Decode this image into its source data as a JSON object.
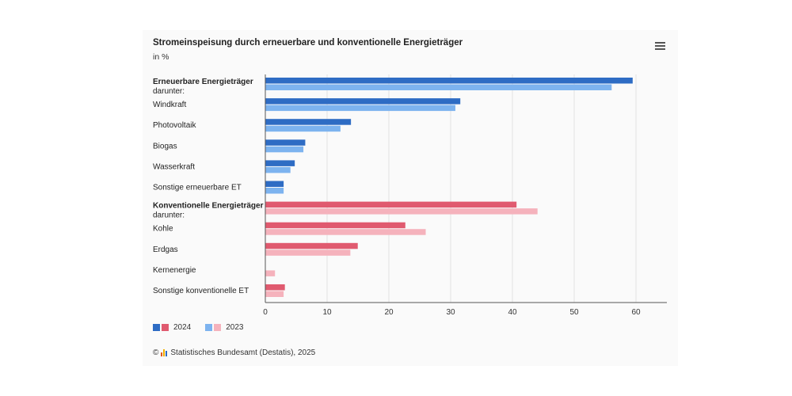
{
  "header": {
    "title": "Stromeinspeisung durch erneuerbare und konventionelle Energieträger",
    "unit": "in %"
  },
  "menu_icon": "hamburger-menu-icon",
  "legend": {
    "items": [
      {
        "label": "2024",
        "colors": [
          "#2e6cc4",
          "#e05a6f"
        ]
      },
      {
        "label": "2023",
        "colors": [
          "#7db3ef",
          "#f5b2bc"
        ]
      }
    ]
  },
  "source": {
    "copyright": "©",
    "logo_icon": "destatis-logo-icon",
    "text": "Statistisches Bundesamt (Destatis), 2025"
  },
  "chart_data": {
    "type": "bar",
    "orientation": "horizontal",
    "title": "Stromeinspeisung durch erneuerbare und konventionelle Energieträger",
    "subtitle": "in %",
    "categories": [
      {
        "label": "Erneuerbare Energieträger",
        "sublabel": "darunter:",
        "bold": true,
        "group": "renewable"
      },
      {
        "label": "Windkraft",
        "group": "renewable"
      },
      {
        "label": "Photovoltaik",
        "group": "renewable"
      },
      {
        "label": "Biogas",
        "group": "renewable"
      },
      {
        "label": "Wasserkraft",
        "group": "renewable"
      },
      {
        "label": "Sonstige erneuerbare ET",
        "group": "renewable"
      },
      {
        "label": "Konventionelle Energieträger",
        "sublabel": "darunter:",
        "bold": true,
        "group": "conventional"
      },
      {
        "label": "Kohle",
        "group": "conventional"
      },
      {
        "label": "Erdgas",
        "group": "conventional"
      },
      {
        "label": "Kernenergie",
        "group": "conventional"
      },
      {
        "label": "Sonstige konventionelle ET",
        "group": "conventional"
      }
    ],
    "series": [
      {
        "name": "2024",
        "values": [
          59.4,
          31.5,
          13.8,
          6.4,
          4.7,
          2.9,
          40.6,
          22.6,
          14.9,
          0,
          3.1
        ]
      },
      {
        "name": "2023",
        "values": [
          56.0,
          30.7,
          12.1,
          6.1,
          4.0,
          2.9,
          44.0,
          25.9,
          13.7,
          1.5,
          2.9
        ]
      }
    ],
    "colors": {
      "renewable": {
        "2024": "#2e6cc4",
        "2023": "#7db3ef"
      },
      "conventional": {
        "2024": "#e05a6f",
        "2023": "#f5b2bc"
      }
    },
    "xlim": [
      0,
      65
    ],
    "xticks": [
      0,
      10,
      20,
      30,
      40,
      50,
      60
    ],
    "grid": true,
    "legend_position": "bottom-left"
  }
}
